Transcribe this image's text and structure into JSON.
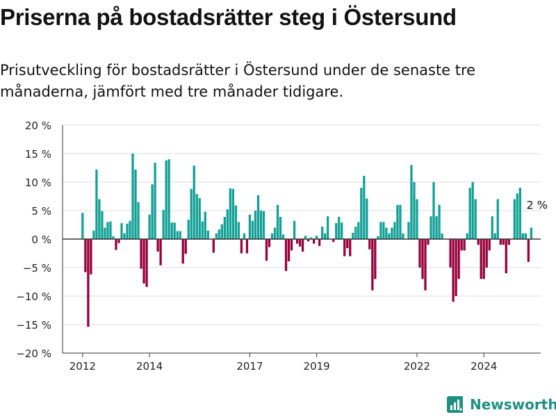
{
  "title": "Priserna på bostadsrätter steg i Östersund",
  "subtitle": "Prisutveckling för bostadsrätter i Östersund under de senaste tre månaderna, jämfört med tre månader tidigare.",
  "brand": {
    "name": "Newsworthy",
    "color": "#1f8f83",
    "icon": "newsworthy-logo-icon"
  },
  "colors": {
    "positive": "#12a096",
    "negative": "#98003b",
    "grid": "#dddddd",
    "axis": "#333333",
    "zero": "#333333"
  },
  "chart_data": {
    "type": "bar",
    "xlabel": "",
    "ylabel": "",
    "ylim": [
      -20,
      20
    ],
    "yticks": [
      -20,
      -15,
      -10,
      -5,
      0,
      5,
      10,
      15,
      20
    ],
    "ytick_labels": [
      "−20 %",
      "−15 %",
      "−10 %",
      "−5 %",
      "0 %",
      "5 %",
      "10 %",
      "15 %",
      "20 %"
    ],
    "x_start": 2012,
    "xlim": [
      2011.4,
      2025.7
    ],
    "xticks": [
      2012,
      2014,
      2017,
      2019,
      2022,
      2024
    ],
    "xtick_labels": [
      "2012",
      "2014",
      "2017",
      "2019",
      "2022",
      "2024"
    ],
    "grid": true,
    "annotation": {
      "text": "2 %",
      "x": 2025.3,
      "y": 2
    },
    "values": [
      4.6,
      -5.8,
      -15.4,
      -6.2,
      1.5,
      12.2,
      7,
      4.9,
      2,
      3,
      3.1,
      0.5,
      -1.9,
      -0.7,
      2.8,
      1,
      2.7,
      3.2,
      15,
      12.2,
      6.5,
      -5.2,
      -7.8,
      -8.4,
      4.3,
      9.6,
      13.4,
      -2.2,
      -4.6,
      5.1,
      13.8,
      14,
      2.9,
      2.9,
      1.4,
      1.4,
      -4.3,
      -2.6,
      3.4,
      8.8,
      12.9,
      7.9,
      7.2,
      3.1,
      4.8,
      1.5,
      0,
      -2.4,
      1,
      1.7,
      2.6,
      3.9,
      5.2,
      8.9,
      8.8,
      5.9,
      3,
      -2.5,
      1,
      -2.5,
      4.3,
      3.2,
      5,
      7.7,
      5,
      4.9,
      -3.8,
      -1.4,
      1,
      2,
      6,
      3.9,
      0.8,
      -5.6,
      -3.9,
      -2,
      3.2,
      -0.8,
      -1.3,
      -2.2,
      0.6,
      -0.4,
      0.3,
      -0.8,
      0.6,
      -1.2,
      2.2,
      1,
      4,
      0,
      -0.5,
      2.8,
      3.9,
      2.9,
      -3,
      -1.6,
      -3,
      1.1,
      2.2,
      3,
      9,
      11.1,
      7.1,
      -1.8,
      -9,
      -7,
      0.5,
      3,
      3,
      2,
      1,
      2,
      3,
      6,
      6,
      1,
      0,
      3,
      13,
      10,
      7,
      -5,
      -7,
      -9,
      -1,
      4,
      10,
      4,
      6,
      1,
      0,
      0,
      -5,
      -11,
      -10,
      -7,
      -2,
      -2,
      1,
      9,
      10,
      7,
      -1,
      -7,
      -7,
      -5,
      -2,
      4,
      1,
      7,
      -1,
      -1,
      -6,
      -1,
      0,
      7,
      8,
      9,
      1,
      1,
      -4,
      2
    ]
  }
}
